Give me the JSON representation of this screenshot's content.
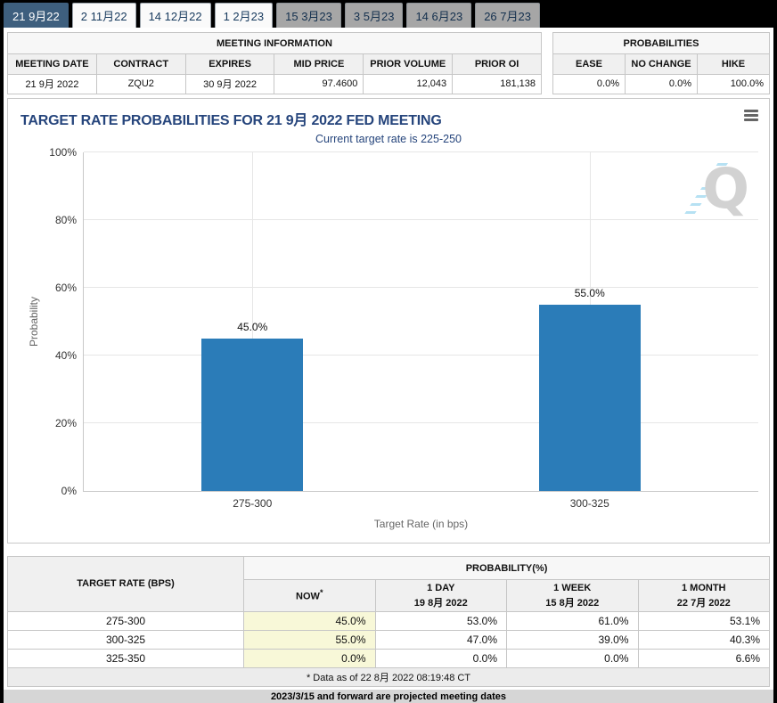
{
  "tabs": [
    {
      "label": "21 9月22",
      "state": "active"
    },
    {
      "label": "2 11月22",
      "state": "normal"
    },
    {
      "label": "14 12月22",
      "state": "normal"
    },
    {
      "label": "1 2月23",
      "state": "normal"
    },
    {
      "label": "15 3月23",
      "state": "projected"
    },
    {
      "label": "3 5月23",
      "state": "projected"
    },
    {
      "label": "14 6月23",
      "state": "projected"
    },
    {
      "label": "26 7月23",
      "state": "projected"
    }
  ],
  "meeting_info": {
    "title": "MEETING INFORMATION",
    "headers": [
      "MEETING DATE",
      "CONTRACT",
      "EXPIRES",
      "MID PRICE",
      "PRIOR VOLUME",
      "PRIOR OI"
    ],
    "values": [
      "21 9月 2022",
      "ZQU2",
      "30 9月 2022",
      "97.4600",
      "12,043",
      "181,138"
    ]
  },
  "probabilities": {
    "title": "PROBABILITIES",
    "headers": [
      "EASE",
      "NO CHANGE",
      "HIKE"
    ],
    "values": [
      "0.0%",
      "0.0%",
      "100.0%"
    ]
  },
  "chart_data": {
    "type": "bar",
    "title": "TARGET RATE PROBABILITIES FOR 21 9月 2022 FED MEETING",
    "subtitle": "Current target rate is 225-250",
    "categories": [
      "275-300",
      "300-325"
    ],
    "values": [
      45.0,
      55.0
    ],
    "value_labels": [
      "45.0%",
      "55.0%"
    ],
    "xlabel": "Target Rate (in bps)",
    "ylabel": "Probability",
    "ylim": [
      0,
      100
    ],
    "yticks": [
      "0%",
      "20%",
      "40%",
      "60%",
      "80%",
      "100%"
    ],
    "grid": true,
    "legend": "none",
    "bar_color": "#2b7cb8",
    "watermark_letter": "Q"
  },
  "bottom_table": {
    "col1_header": "TARGET RATE (BPS)",
    "group_header": "PROBABILITY(%)",
    "sub_headers": [
      {
        "line1": "NOW",
        "sup": "*",
        "line2": ""
      },
      {
        "line1": "1 DAY",
        "line2": "19 8月 2022"
      },
      {
        "line1": "1 WEEK",
        "line2": "15 8月 2022"
      },
      {
        "line1": "1 MONTH",
        "line2": "22 7月 2022"
      }
    ],
    "rows": [
      {
        "rate": "275-300",
        "now": "45.0%",
        "day": "53.0%",
        "week": "61.0%",
        "month": "53.1%"
      },
      {
        "rate": "300-325",
        "now": "55.0%",
        "day": "47.0%",
        "week": "39.0%",
        "month": "40.3%"
      },
      {
        "rate": "325-350",
        "now": "0.0%",
        "day": "0.0%",
        "week": "0.0%",
        "month": "6.6%"
      }
    ],
    "footnote": "* Data as of 22 8月 2022 08:19:48 CT"
  },
  "footer": {
    "note": "2023/3/15 and forward are projected meeting dates"
  },
  "colors": {
    "active_tab": "#3e5f7e",
    "bar": "#2b7cb8",
    "now_highlight": "#f8f8d8",
    "title_navy": "#26457c"
  }
}
